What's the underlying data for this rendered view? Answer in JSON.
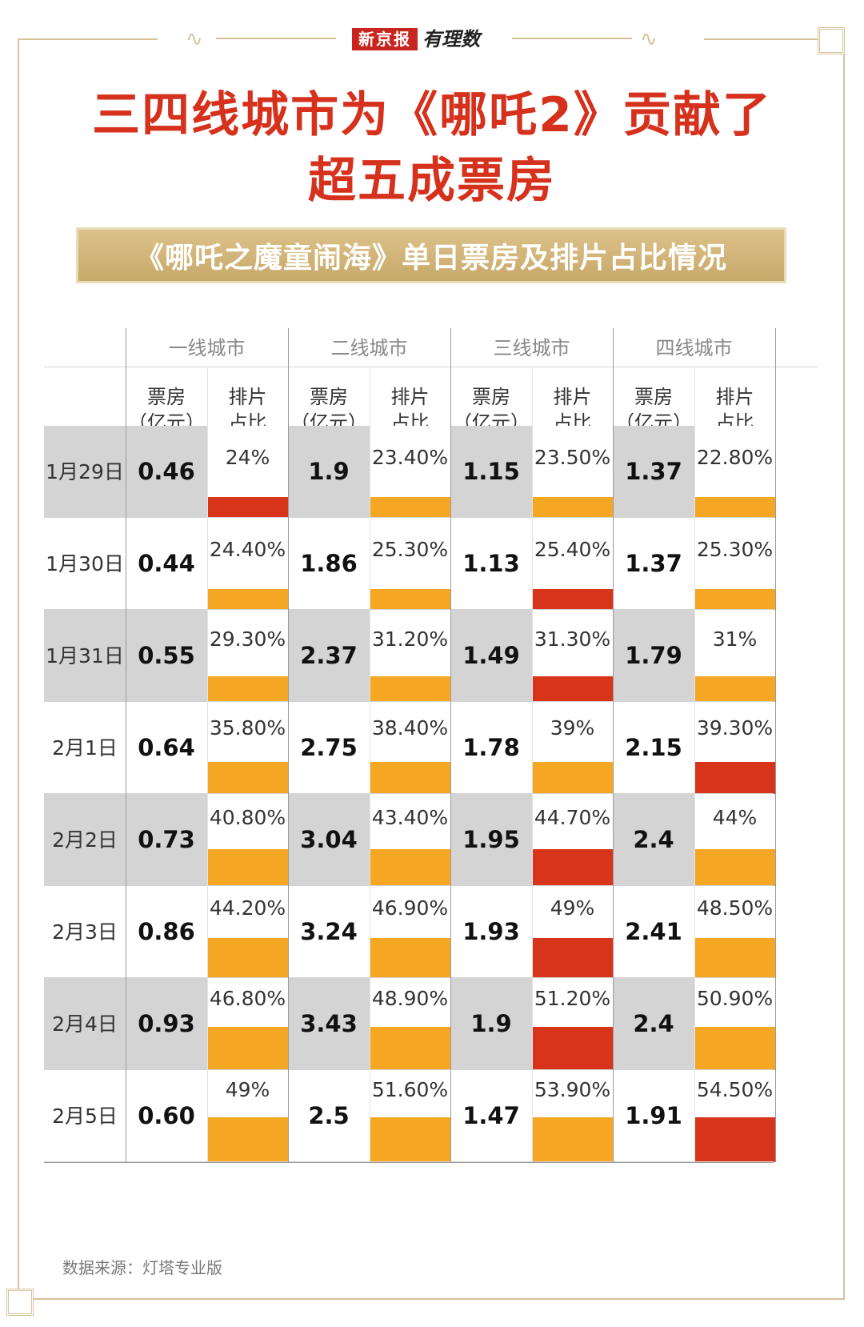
{
  "header": {
    "brand_logo": "新京报",
    "column_logo": "有理数"
  },
  "title": {
    "line1": "三四线城市为《哪吒2》贡献了",
    "line2": "超五成票房"
  },
  "subtitle": "《哪吒之魔童闹海》单日票房及排片占比情况",
  "table": {
    "city_headers": [
      "一线城市",
      "二线城市",
      "三线城市",
      "四线城市"
    ],
    "col_box_office_line1": "票房",
    "col_box_office_line2": "（亿元）",
    "col_screening_line1": "排片",
    "col_screening_line2": "占比"
  },
  "colors": {
    "bar_default": "#f5a623",
    "bar_highlight": "#d8341a",
    "title_red": "#d6311c",
    "frame_gold": "#d8c39a"
  },
  "chart_data": {
    "type": "table",
    "title": "《哪吒之魔童闹海》单日票房及排片占比情况",
    "categories": [
      "1月29日",
      "1月30日",
      "1月31日",
      "2月1日",
      "2月2日",
      "2月3日",
      "2月4日",
      "2月5日"
    ],
    "series": [
      {
        "name": "一线城市",
        "box_office": [
          "0.46",
          "0.44",
          "0.55",
          "0.64",
          "0.73",
          "0.86",
          "0.93",
          "0.60"
        ],
        "screening_label": [
          "24%",
          "24.40%",
          "29.30%",
          "35.80%",
          "40.80%",
          "44.20%",
          "46.80%",
          "49%"
        ],
        "screening_value": [
          24,
          24.4,
          29.3,
          35.8,
          40.8,
          44.2,
          46.8,
          49
        ],
        "highlight": [
          true,
          false,
          false,
          false,
          false,
          false,
          false,
          false
        ]
      },
      {
        "name": "二线城市",
        "box_office": [
          "1.9",
          "1.86",
          "2.37",
          "2.75",
          "3.04",
          "3.24",
          "3.43",
          "2.5"
        ],
        "screening_label": [
          "23.40%",
          "25.30%",
          "31.20%",
          "38.40%",
          "43.40%",
          "46.90%",
          "48.90%",
          "51.60%"
        ],
        "screening_value": [
          23.4,
          25.3,
          31.2,
          38.4,
          43.4,
          46.9,
          48.9,
          51.6
        ],
        "highlight": [
          false,
          false,
          false,
          false,
          false,
          false,
          false,
          false
        ]
      },
      {
        "name": "三线城市",
        "box_office": [
          "1.15",
          "1.13",
          "1.49",
          "1.78",
          "1.95",
          "1.93",
          "1.9",
          "1.47"
        ],
        "screening_label": [
          "23.50%",
          "25.40%",
          "31.30%",
          "39%",
          "44.70%",
          "49%",
          "51.20%",
          "53.90%"
        ],
        "screening_value": [
          23.5,
          25.4,
          31.3,
          39,
          44.7,
          49,
          51.2,
          53.9
        ],
        "highlight": [
          false,
          true,
          true,
          false,
          true,
          true,
          true,
          false
        ]
      },
      {
        "name": "四线城市",
        "box_office": [
          "1.37",
          "1.37",
          "1.79",
          "2.15",
          "2.4",
          "2.41",
          "2.4",
          "1.91"
        ],
        "screening_label": [
          "22.80%",
          "25.30%",
          "31%",
          "39.30%",
          "44%",
          "48.50%",
          "50.90%",
          "54.50%"
        ],
        "screening_value": [
          22.8,
          25.3,
          31,
          39.3,
          44,
          48.5,
          50.9,
          54.5
        ],
        "highlight": [
          false,
          false,
          false,
          true,
          false,
          false,
          false,
          true
        ]
      }
    ]
  },
  "source": "数据来源：灯塔专业版"
}
